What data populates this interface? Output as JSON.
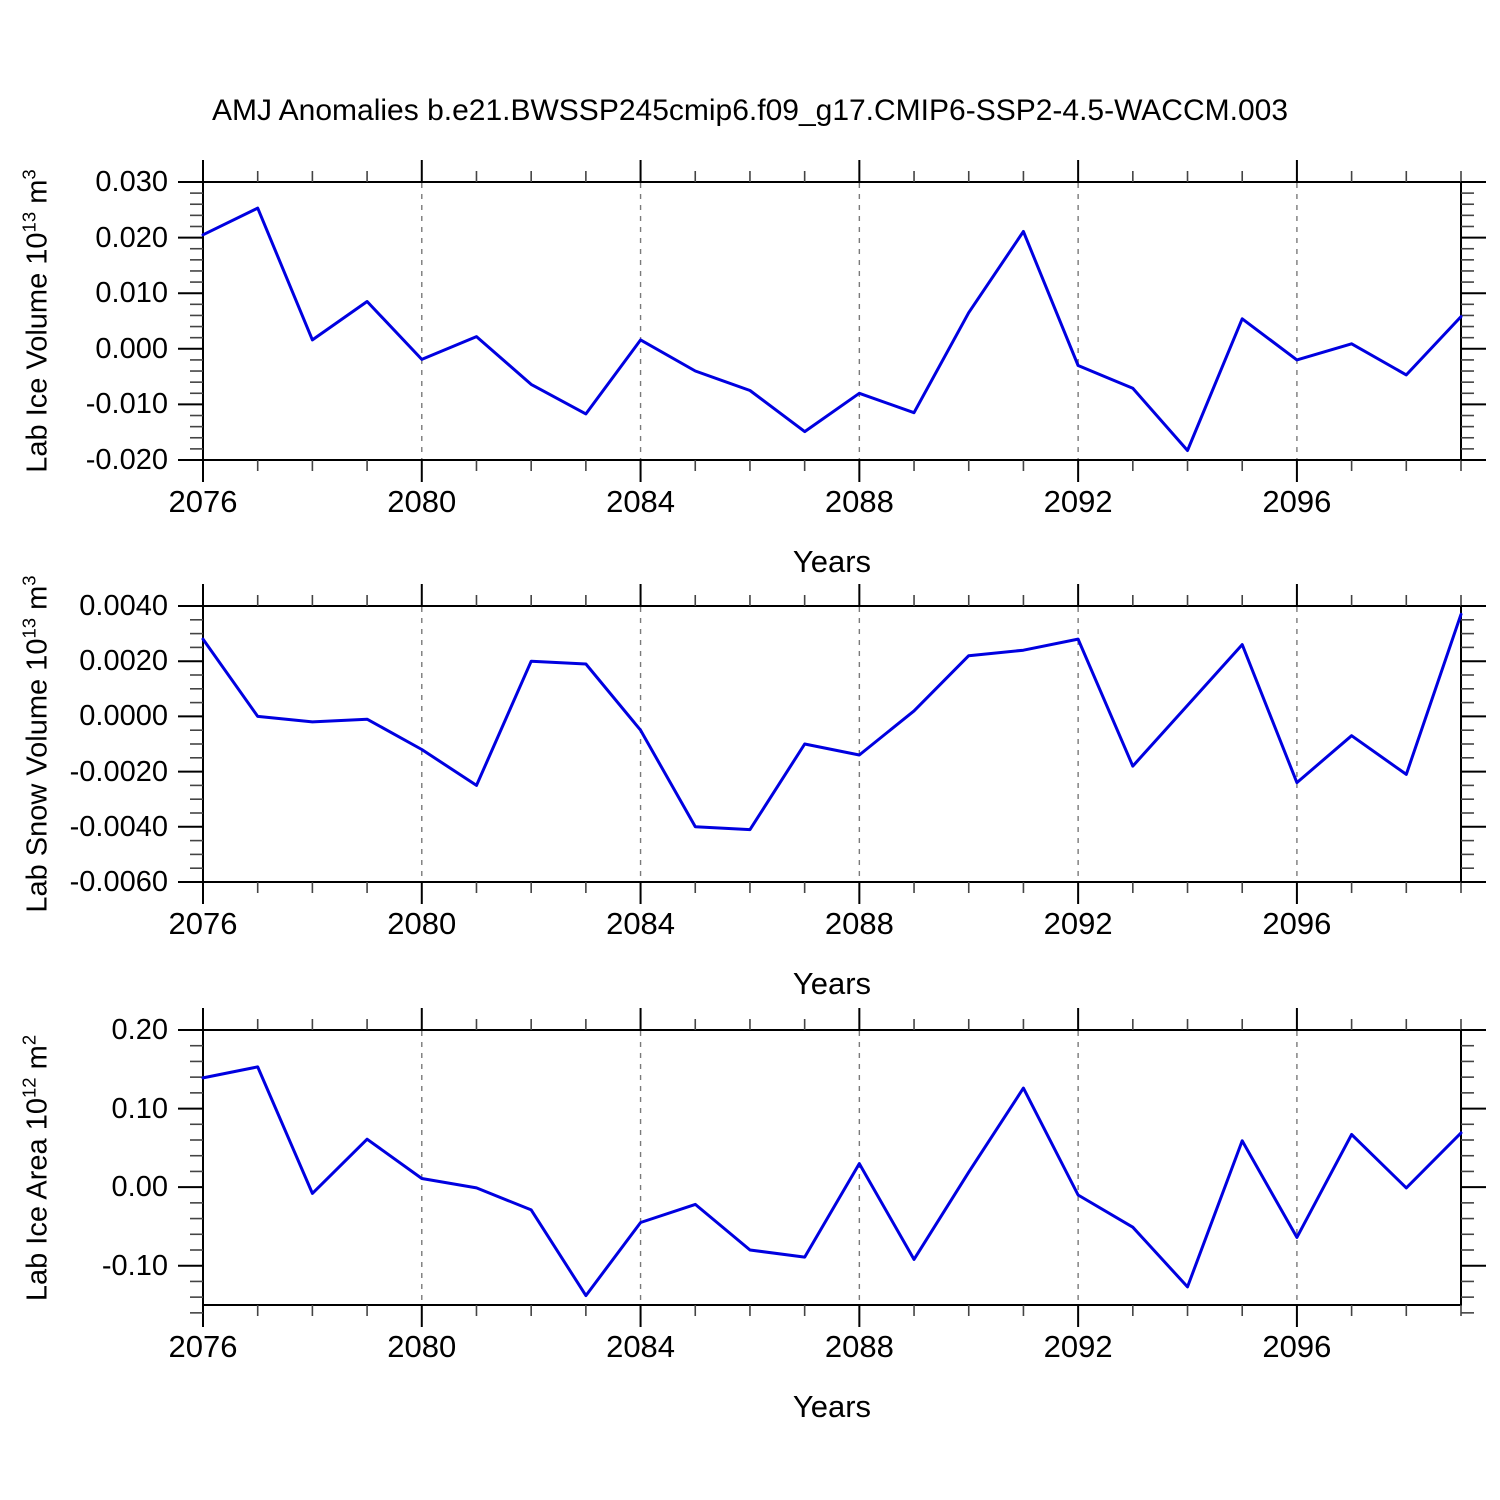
{
  "title": "AMJ Anomalies b.e21.BWSSP245cmip6.f09_g17.CMIP6-SSP2-4.5-WACCM.003",
  "colors": {
    "line": "#0000e0",
    "grid": "#7a7a7a",
    "axis": "#000000",
    "minor_tick": "#444444"
  },
  "chart_data": [
    {
      "type": "line",
      "title": "AMJ Anomalies b.e21.BWSSP245cmip6.f09_g17.CMIP6-SSP2-4.5-WACCM.003",
      "ylabel": "Lab Ice Volume 10^13 m^3",
      "ylabel_parts": [
        [
          "Lab Ice Volume 10",
          false
        ],
        [
          "13",
          true
        ],
        [
          " m",
          false
        ],
        [
          "3",
          true
        ]
      ],
      "xlabel": "Years",
      "x": [
        2076,
        2077,
        2078,
        2079,
        2080,
        2081,
        2082,
        2083,
        2084,
        2085,
        2086,
        2087,
        2088,
        2089,
        2090,
        2091,
        2092,
        2093,
        2094,
        2095,
        2096,
        2097,
        2098,
        2099
      ],
      "y": [
        0.0205,
        0.0253,
        0.0016,
        0.0085,
        -0.0019,
        0.0022,
        -0.0064,
        -0.0117,
        0.0016,
        -0.004,
        -0.0075,
        -0.0149,
        -0.008,
        -0.0115,
        0.0065,
        0.0211,
        -0.003,
        -0.0071,
        -0.0183,
        0.0054,
        -0.002,
        0.0009,
        -0.0047,
        0.0058
      ],
      "xlim": [
        2076,
        2099
      ],
      "ylim": [
        -0.02,
        0.03
      ],
      "ytick_values": [
        0.03,
        0.02,
        0.01,
        0.0,
        -0.01,
        -0.02
      ],
      "ytick_labels": [
        "0.030",
        "0.020",
        "0.010",
        "0.000",
        "-0.010",
        "-0.020"
      ],
      "yminor_step": 0.002,
      "xtick_major": [
        2076,
        2080,
        2084,
        2088,
        2092,
        2096
      ],
      "xtick_labels": [
        "2076",
        "2080",
        "2084",
        "2088",
        "2092",
        "2096"
      ],
      "grid_x": [
        2080,
        2084,
        2088,
        2092,
        2096
      ],
      "grid": "vertical-dashed",
      "legend": "none"
    },
    {
      "type": "line",
      "title": "",
      "ylabel": "Lab Snow Volume 10^13 m^3",
      "ylabel_parts": [
        [
          "Lab Snow Volume 10",
          false
        ],
        [
          "13",
          true
        ],
        [
          " m",
          false
        ],
        [
          "3",
          true
        ]
      ],
      "xlabel": "Years",
      "x": [
        2076,
        2077,
        2078,
        2079,
        2080,
        2081,
        2082,
        2083,
        2084,
        2085,
        2086,
        2087,
        2088,
        2089,
        2090,
        2091,
        2092,
        2093,
        2094,
        2095,
        2096,
        2097,
        2098,
        2099
      ],
      "y": [
        0.0028,
        0.0,
        -0.0002,
        -0.0001,
        -0.0012,
        -0.0025,
        0.002,
        0.0019,
        -0.0005,
        -0.004,
        -0.0041,
        -0.001,
        -0.0014,
        0.0002,
        0.0022,
        0.0024,
        0.0028,
        -0.0018,
        0.0004,
        0.0026,
        -0.0024,
        -0.0007,
        -0.0021,
        0.0037
      ],
      "xlim": [
        2076,
        2099
      ],
      "ylim": [
        -0.006,
        0.004
      ],
      "ytick_values": [
        0.004,
        0.002,
        0.0,
        -0.002,
        -0.004,
        -0.006
      ],
      "ytick_labels": [
        "0.0040",
        "0.0020",
        "0.0000",
        "-0.0020",
        "-0.0040",
        "-0.0060"
      ],
      "yminor_step": 0.0005,
      "xtick_major": [
        2076,
        2080,
        2084,
        2088,
        2092,
        2096
      ],
      "xtick_labels": [
        "2076",
        "2080",
        "2084",
        "2088",
        "2092",
        "2096"
      ],
      "grid_x": [
        2080,
        2084,
        2088,
        2092,
        2096
      ],
      "grid": "vertical-dashed",
      "legend": "none"
    },
    {
      "type": "line",
      "title": "",
      "ylabel": "Lab Ice Area 10^12 m^2",
      "ylabel_parts": [
        [
          "Lab Ice Area 10",
          false
        ],
        [
          "12",
          true
        ],
        [
          " m",
          false
        ],
        [
          "2",
          true
        ]
      ],
      "xlabel": "Years",
      "x": [
        2076,
        2077,
        2078,
        2079,
        2080,
        2081,
        2082,
        2083,
        2084,
        2085,
        2086,
        2087,
        2088,
        2089,
        2090,
        2091,
        2092,
        2093,
        2094,
        2095,
        2096,
        2097,
        2098,
        2099
      ],
      "y": [
        0.139,
        0.153,
        -0.008,
        0.061,
        0.011,
        -0.001,
        -0.029,
        -0.138,
        -0.045,
        -0.022,
        -0.08,
        -0.089,
        0.03,
        -0.092,
        0.019,
        0.126,
        -0.01,
        -0.051,
        -0.127,
        0.059,
        -0.064,
        0.067,
        -0.001,
        0.069
      ],
      "xlim": [
        2076,
        2099
      ],
      "ylim": [
        -0.15,
        0.2
      ],
      "ytick_values": [
        0.2,
        0.1,
        0.0,
        -0.1
      ],
      "ytick_labels": [
        "0.20",
        "0.10",
        "0.00",
        "-0.10"
      ],
      "yminor_step": 0.02,
      "xtick_major": [
        2076,
        2080,
        2084,
        2088,
        2092,
        2096
      ],
      "xtick_labels": [
        "2076",
        "2080",
        "2084",
        "2088",
        "2092",
        "2096"
      ],
      "grid_x": [
        2080,
        2084,
        2088,
        2092,
        2096
      ],
      "grid": "vertical-dashed",
      "legend": "none"
    }
  ]
}
